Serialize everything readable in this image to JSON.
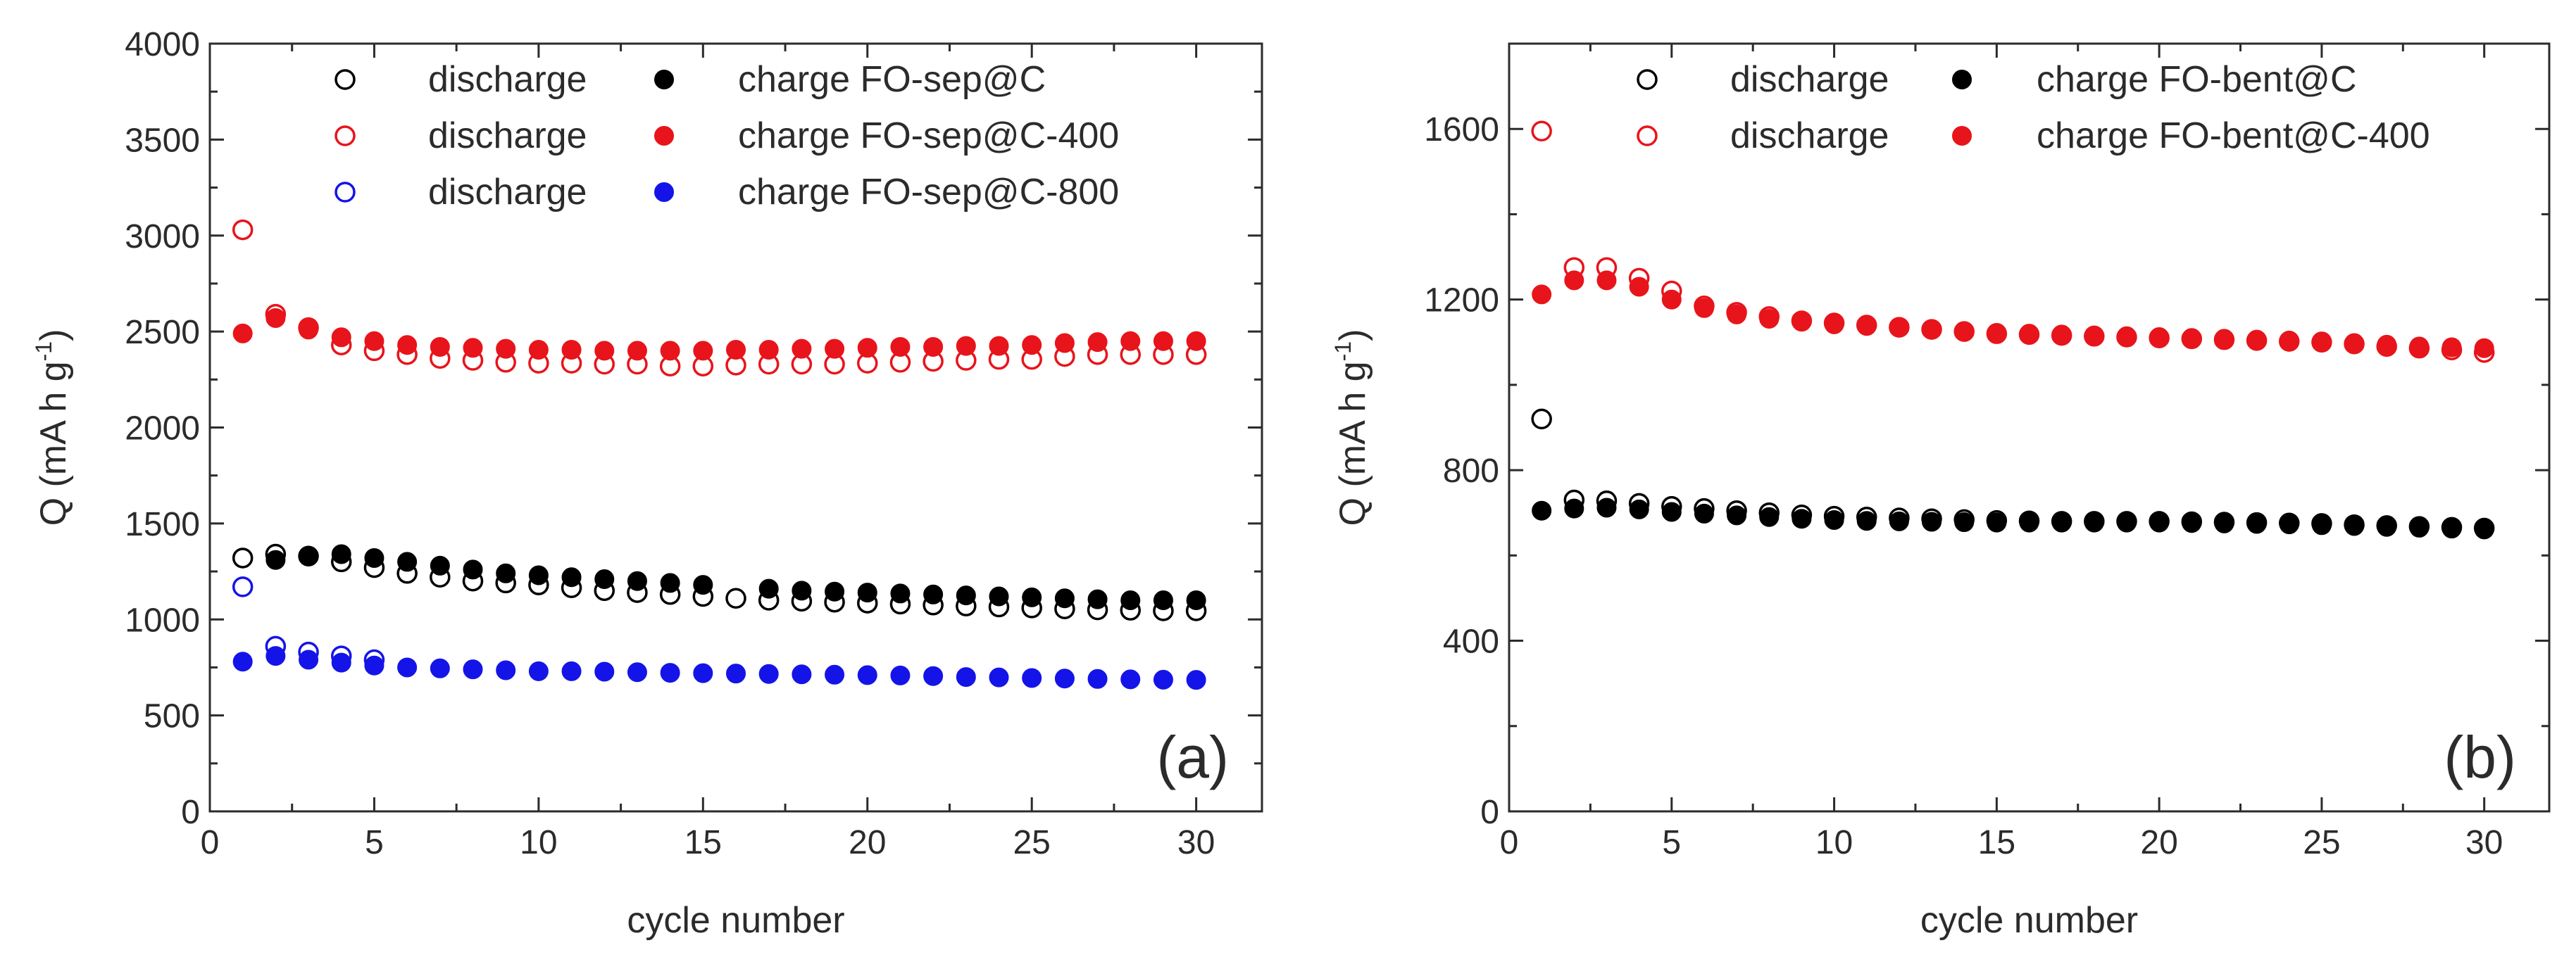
{
  "chart_data": [
    {
      "panel": "(a)",
      "type": "scatter",
      "xlabel": "cycle number",
      "ylabel": "Q (mA h g-1)",
      "ylabel_main": "Q (mA h g",
      "ylabel_sup": "-1",
      "ylabel_close": ")",
      "xlim": [
        0,
        32
      ],
      "ylim": [
        0,
        4000
      ],
      "xticks": [
        0,
        5,
        10,
        15,
        20,
        25,
        30
      ],
      "yticks": [
        0,
        500,
        1000,
        1500,
        2000,
        2500,
        3000,
        3500,
        4000
      ],
      "legend": [
        {
          "text": "discharge",
          "marker": "open",
          "color": "#000000"
        },
        {
          "text": "charge FO-sep@C",
          "marker": "filled",
          "color": "#000000"
        },
        {
          "text": "discharge",
          "marker": "open",
          "color": "#e8141b"
        },
        {
          "text": "charge FO-sep@C-400",
          "marker": "filled",
          "color": "#e8141b"
        },
        {
          "text": "discharge",
          "marker": "open",
          "color": "#1414e8"
        },
        {
          "text": "charge FO-sep@C-800",
          "marker": "filled",
          "color": "#1414e8"
        }
      ],
      "series": [
        {
          "name": "discharge FO-sep@C",
          "marker": "open",
          "color": "#000000",
          "x": [
            1,
            2,
            3,
            4,
            5,
            6,
            7,
            8,
            9,
            10,
            11,
            12,
            13,
            14,
            15,
            16,
            17,
            18,
            19,
            20,
            21,
            22,
            23,
            24,
            25,
            26,
            27,
            28,
            29,
            30
          ],
          "y": [
            1320,
            1340,
            1330,
            1300,
            1270,
            1240,
            1220,
            1200,
            1190,
            1180,
            1165,
            1150,
            1140,
            1130,
            1120,
            1110,
            1100,
            1095,
            1090,
            1085,
            1080,
            1075,
            1070,
            1065,
            1060,
            1055,
            1050,
            1048,
            1045,
            1045
          ]
        },
        {
          "name": "charge FO-sep@C",
          "marker": "filled",
          "color": "#000000",
          "x": [
            2,
            3,
            4,
            5,
            6,
            7,
            8,
            9,
            10,
            11,
            12,
            13,
            14,
            15,
            17,
            18,
            19,
            20,
            21,
            22,
            23,
            24,
            25,
            26,
            27,
            28,
            29,
            30
          ],
          "y": [
            1310,
            1330,
            1340,
            1320,
            1300,
            1280,
            1260,
            1240,
            1230,
            1220,
            1210,
            1200,
            1190,
            1180,
            1160,
            1150,
            1145,
            1140,
            1135,
            1130,
            1125,
            1120,
            1115,
            1110,
            1105,
            1100,
            1100,
            1100
          ]
        },
        {
          "name": "discharge FO-sep@C-400",
          "marker": "open",
          "color": "#e8141b",
          "x": [
            1,
            2,
            3,
            4,
            5,
            6,
            7,
            8,
            9,
            10,
            11,
            12,
            13,
            14,
            15,
            16,
            17,
            18,
            19,
            20,
            21,
            22,
            23,
            24,
            25,
            26,
            27,
            28,
            29,
            30
          ],
          "y": [
            3030,
            2590,
            2520,
            2430,
            2400,
            2380,
            2360,
            2350,
            2340,
            2335,
            2335,
            2330,
            2330,
            2320,
            2320,
            2325,
            2330,
            2330,
            2330,
            2335,
            2340,
            2345,
            2350,
            2355,
            2355,
            2370,
            2380,
            2380,
            2380,
            2380
          ]
        },
        {
          "name": "charge FO-sep@C-400",
          "marker": "filled",
          "color": "#e8141b",
          "x": [
            1,
            2,
            3,
            4,
            5,
            6,
            7,
            8,
            9,
            10,
            11,
            12,
            13,
            14,
            15,
            16,
            17,
            18,
            19,
            20,
            21,
            22,
            23,
            24,
            25,
            26,
            27,
            28,
            29,
            30
          ],
          "y": [
            2490,
            2570,
            2510,
            2470,
            2450,
            2430,
            2420,
            2415,
            2410,
            2405,
            2405,
            2400,
            2400,
            2400,
            2400,
            2405,
            2405,
            2410,
            2410,
            2415,
            2420,
            2420,
            2425,
            2425,
            2430,
            2440,
            2445,
            2450,
            2450,
            2450
          ]
        },
        {
          "name": "discharge FO-sep@C-800",
          "marker": "open",
          "color": "#1414e8",
          "x": [
            1,
            2,
            3,
            4,
            5
          ],
          "y": [
            1170,
            860,
            830,
            810,
            790
          ]
        },
        {
          "name": "charge FO-sep@C-800",
          "marker": "filled",
          "color": "#1414e8",
          "x": [
            1,
            2,
            3,
            4,
            5,
            6,
            7,
            8,
            9,
            10,
            11,
            12,
            13,
            14,
            15,
            16,
            17,
            18,
            19,
            20,
            21,
            22,
            23,
            24,
            25,
            26,
            27,
            28,
            29,
            30
          ],
          "y": [
            780,
            810,
            790,
            775,
            760,
            750,
            745,
            740,
            735,
            730,
            730,
            728,
            725,
            722,
            720,
            718,
            716,
            714,
            712,
            710,
            708,
            705,
            700,
            698,
            695,
            692,
            690,
            688,
            686,
            685
          ]
        }
      ]
    },
    {
      "panel": "(b)",
      "type": "scatter",
      "xlabel": "cycle number",
      "ylabel": "Q (mA h g-1)",
      "ylabel_main": "Q (mA h g",
      "ylabel_sup": "-1",
      "ylabel_close": ")",
      "xlim": [
        0,
        32
      ],
      "ylim": [
        0,
        1800
      ],
      "xticks": [
        0,
        5,
        10,
        15,
        20,
        25,
        30
      ],
      "yticks": [
        0,
        400,
        800,
        1200,
        1600
      ],
      "legend": [
        {
          "text": "discharge",
          "marker": "open",
          "color": "#000000"
        },
        {
          "text": "charge FO-bent@C",
          "marker": "filled",
          "color": "#000000"
        },
        {
          "text": "discharge",
          "marker": "open",
          "color": "#e8141b"
        },
        {
          "text": "charge FO-bent@C-400",
          "marker": "filled",
          "color": "#e8141b"
        }
      ],
      "series": [
        {
          "name": "discharge FO-bent@C",
          "marker": "open",
          "color": "#000000",
          "x": [
            1,
            2,
            3,
            4,
            5,
            6,
            7,
            8,
            9,
            10,
            11,
            12,
            13,
            14,
            15,
            16,
            17,
            18,
            19,
            20,
            21,
            22,
            23,
            24,
            25,
            26,
            27,
            28,
            29,
            30
          ],
          "y": [
            920,
            730,
            728,
            722,
            715,
            710,
            705,
            700,
            695,
            692,
            690,
            688,
            686,
            684,
            682,
            681,
            680,
            680,
            680,
            680,
            679,
            678,
            677,
            676,
            675,
            672,
            670,
            668,
            666,
            664
          ]
        },
        {
          "name": "charge FO-bent@C",
          "marker": "filled",
          "color": "#000000",
          "x": [
            1,
            2,
            3,
            4,
            5,
            6,
            7,
            8,
            9,
            10,
            11,
            12,
            13,
            14,
            15,
            16,
            17,
            18,
            19,
            20,
            21,
            22,
            23,
            24,
            25,
            26,
            27,
            28,
            29,
            30
          ],
          "y": [
            705,
            710,
            712,
            708,
            702,
            698,
            694,
            690,
            686,
            683,
            681,
            680,
            679,
            678,
            677,
            677,
            677,
            677,
            677,
            677,
            676,
            675,
            674,
            673,
            671,
            669,
            667,
            665,
            663,
            661
          ]
        },
        {
          "name": "discharge FO-bent@C-400",
          "marker": "open",
          "color": "#e8141b",
          "x": [
            1,
            2,
            3,
            4,
            5,
            6,
            7,
            8,
            9,
            10,
            11,
            12,
            13,
            14,
            15,
            16,
            17,
            18,
            19,
            20,
            21,
            22,
            23,
            24,
            25,
            26,
            27,
            28,
            29,
            30
          ],
          "y": [
            1595,
            1275,
            1275,
            1250,
            1220,
            1185,
            1170,
            1160,
            1150,
            1145,
            1140,
            1135,
            1130,
            1125,
            1120,
            1118,
            1116,
            1114,
            1112,
            1110,
            1108,
            1106,
            1104,
            1102,
            1100,
            1096,
            1090,
            1086,
            1082,
            1076
          ]
        },
        {
          "name": "charge FO-bent@C-400",
          "marker": "filled",
          "color": "#e8141b",
          "x": [
            1,
            2,
            3,
            4,
            5,
            6,
            7,
            8,
            9,
            10,
            11,
            12,
            13,
            14,
            15,
            16,
            17,
            18,
            19,
            20,
            21,
            22,
            23,
            24,
            25,
            26,
            27,
            28,
            29,
            30
          ],
          "y": [
            1212,
            1245,
            1245,
            1230,
            1200,
            1180,
            1165,
            1155,
            1148,
            1142,
            1138,
            1134,
            1130,
            1126,
            1122,
            1120,
            1118,
            1116,
            1114,
            1112,
            1110,
            1108,
            1106,
            1104,
            1102,
            1098,
            1094,
            1090,
            1088,
            1086
          ]
        }
      ]
    }
  ]
}
